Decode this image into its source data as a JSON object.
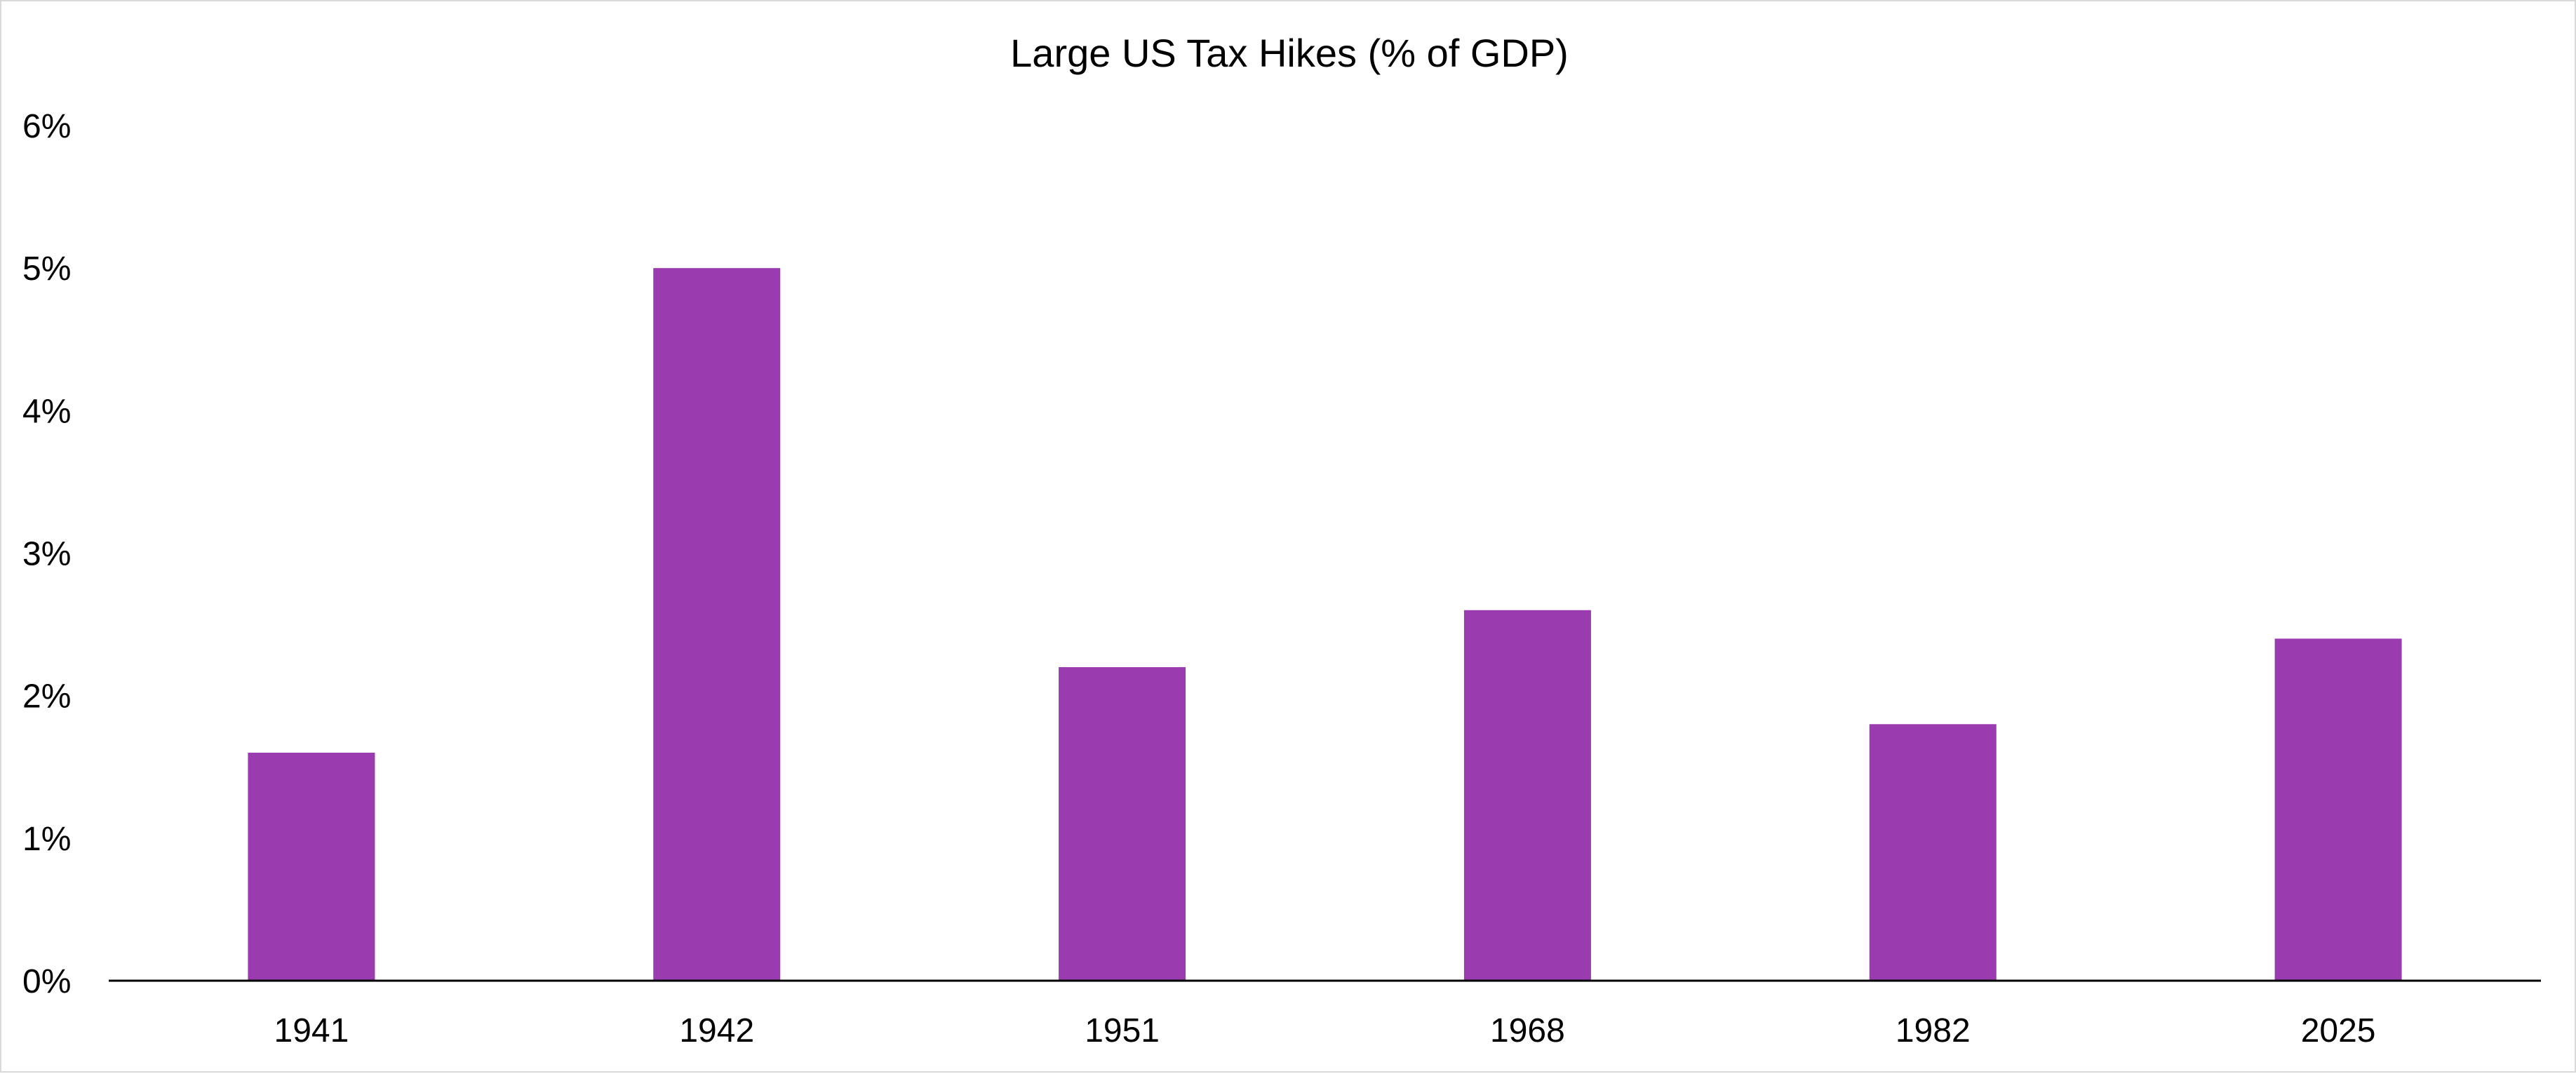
{
  "chart_data": {
    "type": "bar",
    "title": "Large US Tax Hikes (% of GDP)",
    "xlabel": "",
    "ylabel": "",
    "categories": [
      "1941",
      "1942",
      "1951",
      "1968",
      "1982",
      "2025"
    ],
    "values": [
      1.6,
      5.0,
      2.2,
      2.6,
      1.8,
      2.4
    ],
    "ylim": [
      0,
      6
    ],
    "yticks": [
      0,
      1,
      2,
      3,
      4,
      5,
      6
    ],
    "ytick_labels": [
      "0%",
      "1%",
      "2%",
      "3%",
      "4%",
      "5%",
      "6%"
    ],
    "grid": false,
    "legend": "none",
    "bar_color": "#9b3bb0",
    "axis_color": "#000000"
  }
}
